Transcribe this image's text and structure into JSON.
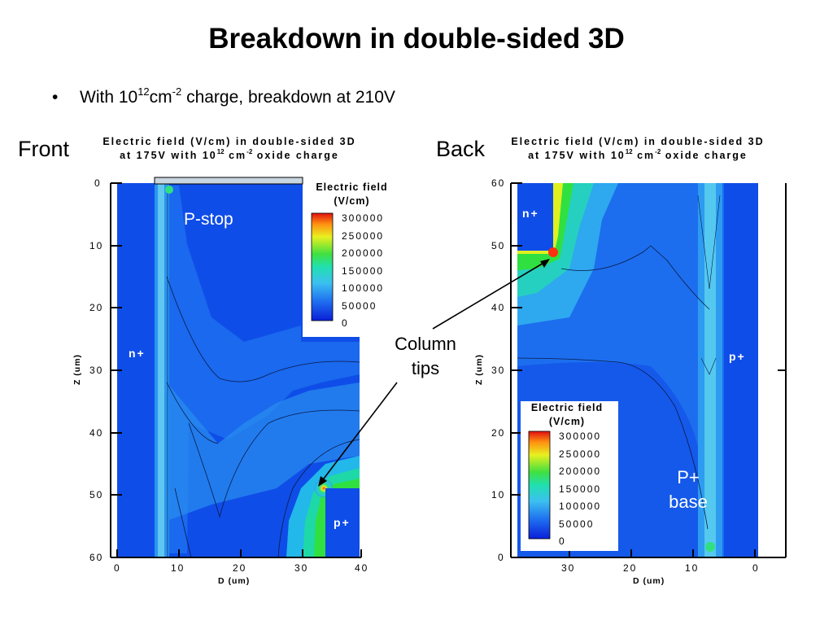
{
  "slide": {
    "title": "Breakdown in double-sided 3D",
    "bullet": {
      "before": "With 10",
      "exp1": "12",
      "mid": "cm",
      "exp2": "-2",
      "after": " charge, breakdown at 210V"
    }
  },
  "panels": {
    "front": {
      "side_label": "Front",
      "title_line1": "Electric field (V/cm) in double-sided 3D",
      "title_line2_a": "at 175V with 10",
      "title_line2_exp1": "12",
      "title_line2_b": " cm",
      "title_line2_exp2": "-2",
      "title_line2_c": " oxide charge",
      "xlabel": "D (um)",
      "ylabel": "Z (um)",
      "xticks": [
        "0",
        "10",
        "20",
        "30",
        "40"
      ],
      "yticks": [
        "0",
        "10",
        "20",
        "30",
        "40",
        "50",
        "60"
      ],
      "region_labels": {
        "n": "n+",
        "p": "p+"
      },
      "annotation": "P-stop",
      "legend": {
        "title1": "Electric field",
        "title2": "(V/cm)",
        "levels": [
          "300000",
          "250000",
          "200000",
          "150000",
          "100000",
          "50000",
          "0"
        ]
      }
    },
    "back": {
      "side_label": "Back",
      "title_line1": "Electric field (V/cm) in double-sided 3D",
      "title_line2_a": "at 175V with 10",
      "title_line2_exp1": "12",
      "title_line2_b": " cm",
      "title_line2_exp2": "-2",
      "title_line2_c": " oxide charge",
      "xlabel": "D (um)",
      "ylabel": "Z (um)",
      "xticks": [
        "30",
        "20",
        "10",
        "0"
      ],
      "yticks": [
        "60",
        "50",
        "40",
        "30",
        "20",
        "10",
        "0"
      ],
      "region_labels": {
        "n": "n+",
        "p": "p+"
      },
      "annotation_line1": "P+",
      "annotation_line2": "base",
      "legend": {
        "title1": "Electric field",
        "title2": "(V/cm)",
        "levels": [
          "300000",
          "250000",
          "200000",
          "150000",
          "100000",
          "50000",
          "0"
        ]
      }
    },
    "shared_annotation": {
      "line1": "Column",
      "line2": "tips"
    }
  },
  "colors": {
    "base_field": "#0f4de8",
    "low_field": "#1f7ef0",
    "mid_field": "#3cb4ee",
    "high_field": "#19d98a",
    "peak_field": "#ff3010"
  }
}
